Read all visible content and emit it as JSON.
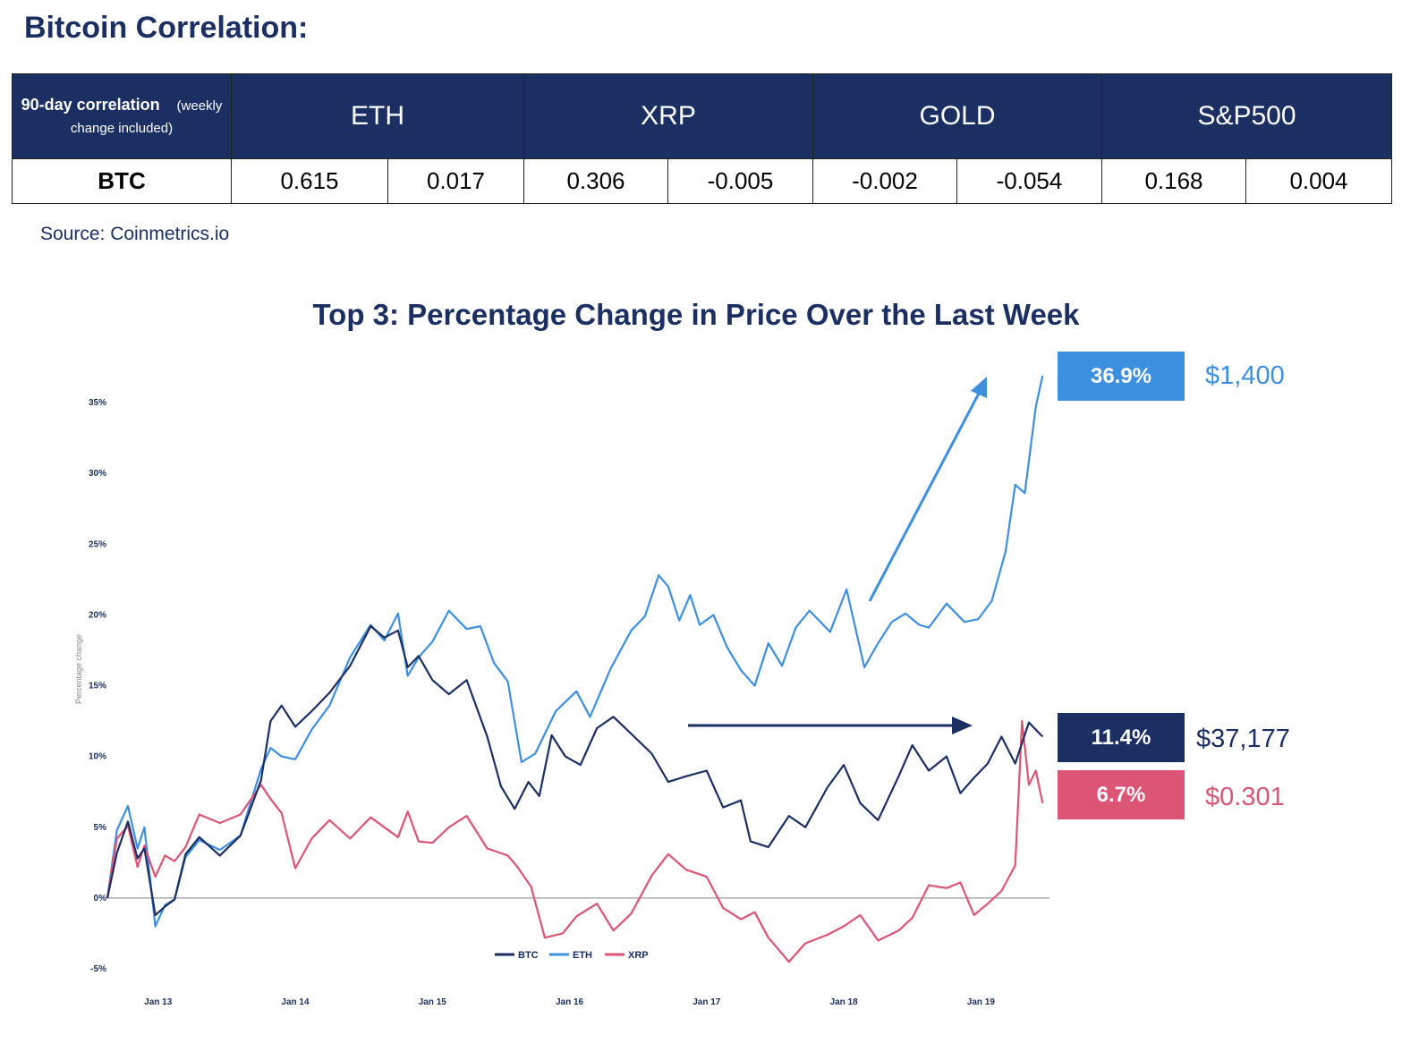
{
  "page_title": "Bitcoin Correlation:",
  "table": {
    "header_main": "90-day correlation",
    "header_note_a": "(weekly",
    "header_note_b": "change included)",
    "columns": [
      "ETH",
      "XRP",
      "GOLD",
      "S&P500"
    ],
    "row_label": "BTC",
    "values": [
      {
        "corr": "0.615",
        "change": "0.017"
      },
      {
        "corr": "0.306",
        "change": "-0.005"
      },
      {
        "corr": "-0.002",
        "change": "-0.054"
      },
      {
        "corr": "0.168",
        "change": "0.004"
      }
    ]
  },
  "source": "Source: Coinmetrics.io",
  "colors": {
    "navy": "#1b2f63",
    "btc": "#1b2f63",
    "eth": "#3d8fe0",
    "xrp": "#dc5476",
    "positive": "#6aa84f",
    "negative": "#c00000"
  },
  "chart_data": {
    "type": "line",
    "title": "Top 3: Percentage Change in Price Over the Last Week",
    "ylabel": "Percentage change",
    "xlabel": "",
    "x_ticks": [
      "Jan 13",
      "Jan 14",
      "Jan 15",
      "Jan 16",
      "Jan 17",
      "Jan 18",
      "Jan 19"
    ],
    "x_range_days": [
      12.63,
      19.5
    ],
    "y_ticks": [
      "35%",
      "30%",
      "25%",
      "20%",
      "15%",
      "10%",
      "5%",
      "0%",
      "-5%"
    ],
    "ylim": [
      -5,
      35
    ],
    "legend_position": "bottom-center",
    "series": [
      {
        "name": "BTC",
        "x": [
          12.63,
          12.7,
          12.78,
          12.85,
          12.9,
          12.98,
          13.05,
          13.12,
          13.2,
          13.3,
          13.45,
          13.6,
          13.75,
          13.82,
          13.9,
          14.0,
          14.12,
          14.25,
          14.4,
          14.55,
          14.65,
          14.75,
          14.82,
          14.9,
          15.0,
          15.12,
          15.25,
          15.4,
          15.5,
          15.6,
          15.7,
          15.78,
          15.87,
          15.97,
          16.08,
          16.2,
          16.32,
          16.45,
          16.6,
          16.72,
          16.85,
          17.0,
          17.12,
          17.25,
          17.32,
          17.45,
          17.6,
          17.72,
          17.88,
          18.0,
          18.12,
          18.25,
          18.4,
          18.5,
          18.62,
          18.75,
          18.85,
          18.95,
          19.05,
          19.15,
          19.25,
          19.35,
          19.45
        ],
        "values": [
          0,
          3.2,
          5.4,
          2.8,
          3.5,
          -1.2,
          -0.6,
          -0.1,
          3.1,
          4.3,
          3.0,
          4.4,
          8.3,
          12.5,
          13.6,
          12.1,
          13.2,
          14.5,
          16.4,
          19.2,
          18.4,
          18.9,
          16.3,
          17.1,
          15.4,
          14.4,
          15.4,
          11.4,
          7.9,
          6.3,
          8.2,
          7.2,
          11.5,
          10.0,
          9.4,
          12.0,
          12.8,
          11.6,
          10.2,
          8.2,
          8.6,
          9.0,
          6.4,
          6.9,
          4.0,
          3.6,
          5.8,
          5.0,
          7.8,
          9.4,
          6.7,
          5.5,
          8.6,
          10.8,
          9.0,
          10.0,
          7.4,
          8.5,
          9.5,
          11.4,
          9.5,
          12.4,
          11.4
        ]
      },
      {
        "name": "ETH",
        "x": [
          12.63,
          12.7,
          12.78,
          12.85,
          12.9,
          12.98,
          13.05,
          13.12,
          13.2,
          13.3,
          13.45,
          13.6,
          13.75,
          13.82,
          13.9,
          14.0,
          14.12,
          14.25,
          14.4,
          14.55,
          14.65,
          14.75,
          14.82,
          14.9,
          15.0,
          15.12,
          15.25,
          15.35,
          15.45,
          15.55,
          15.65,
          15.75,
          15.9,
          16.05,
          16.15,
          16.3,
          16.45,
          16.55,
          16.65,
          16.72,
          16.8,
          16.88,
          16.95,
          17.05,
          17.15,
          17.25,
          17.35,
          17.45,
          17.55,
          17.65,
          17.75,
          17.9,
          18.02,
          18.15,
          18.25,
          18.35,
          18.45,
          18.55,
          18.62,
          18.75,
          18.88,
          18.98,
          19.08,
          19.18,
          19.25,
          19.32,
          19.4,
          19.45
        ],
        "values": [
          0,
          4.8,
          6.5,
          3.5,
          5.0,
          -2.0,
          -0.5,
          -0.1,
          2.9,
          4.1,
          3.4,
          4.4,
          9.1,
          10.6,
          10.0,
          9.8,
          11.9,
          13.6,
          17.0,
          19.3,
          18.2,
          20.1,
          15.7,
          17.0,
          18.1,
          20.3,
          19.0,
          19.2,
          16.6,
          15.3,
          9.6,
          10.2,
          13.2,
          14.6,
          12.8,
          16.2,
          18.9,
          19.9,
          22.8,
          22.0,
          19.6,
          21.4,
          19.3,
          20.0,
          17.7,
          16.1,
          15.0,
          18.0,
          16.4,
          19.1,
          20.3,
          18.8,
          21.8,
          16.3,
          18.0,
          19.5,
          20.1,
          19.3,
          19.1,
          20.8,
          19.5,
          19.7,
          21.0,
          24.5,
          29.2,
          28.6,
          34.7,
          36.9
        ]
      },
      {
        "name": "XRP",
        "x": [
          12.63,
          12.7,
          12.78,
          12.85,
          12.9,
          12.98,
          13.05,
          13.12,
          13.2,
          13.3,
          13.45,
          13.6,
          13.75,
          13.82,
          13.9,
          14.0,
          14.12,
          14.25,
          14.4,
          14.55,
          14.65,
          14.75,
          14.82,
          14.9,
          15.0,
          15.12,
          15.25,
          15.4,
          15.55,
          15.62,
          15.72,
          15.82,
          15.95,
          16.05,
          16.2,
          16.32,
          16.45,
          16.6,
          16.72,
          16.85,
          17.0,
          17.12,
          17.25,
          17.35,
          17.45,
          17.6,
          17.72,
          17.88,
          18.0,
          18.12,
          18.25,
          18.4,
          18.5,
          18.62,
          18.75,
          18.85,
          18.95,
          19.05,
          19.15,
          19.25,
          19.3,
          19.35,
          19.4,
          19.45
        ],
        "values": [
          0,
          4.2,
          5.1,
          2.2,
          3.7,
          1.5,
          3.0,
          2.6,
          3.6,
          5.9,
          5.3,
          5.9,
          8.0,
          7.0,
          6.0,
          2.1,
          4.2,
          5.5,
          4.2,
          5.7,
          5.0,
          4.3,
          6.1,
          4.0,
          3.9,
          5.0,
          5.8,
          3.5,
          3.0,
          2.2,
          0.8,
          -2.8,
          -2.5,
          -1.3,
          -0.4,
          -2.3,
          -1.1,
          1.6,
          3.1,
          2.0,
          1.5,
          -0.7,
          -1.5,
          -1.0,
          -2.8,
          -4.5,
          -3.2,
          -2.6,
          -2.0,
          -1.2,
          -3.0,
          -2.3,
          -1.4,
          0.9,
          0.7,
          1.1,
          -1.2,
          -0.4,
          0.5,
          2.3,
          12.5,
          8.0,
          9.0,
          6.7
        ]
      }
    ],
    "annotations": {
      "ETH": {
        "change": "36.9%",
        "price": "$1,400"
      },
      "BTC": {
        "change": "11.4%",
        "price": "$37,177"
      },
      "XRP": {
        "change": "6.7%",
        "price": "$0.301"
      }
    },
    "legend": [
      "BTC",
      "ETH",
      "XRP"
    ]
  }
}
